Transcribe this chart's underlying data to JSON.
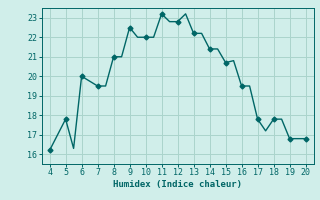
{
  "x": [
    4,
    5,
    5.5,
    6,
    7,
    7.5,
    8,
    8.5,
    9,
    9.5,
    10,
    10.5,
    11,
    11.5,
    12,
    12.5,
    13,
    13.5,
    14,
    14.5,
    15,
    15.5,
    16,
    16.5,
    17,
    17.5,
    18,
    18.5,
    19,
    19.5,
    20
  ],
  "y": [
    16.2,
    17.8,
    16.3,
    20.0,
    19.5,
    19.5,
    21.0,
    21.0,
    22.5,
    22.0,
    22.0,
    22.0,
    23.2,
    22.8,
    22.8,
    23.2,
    22.2,
    22.2,
    21.4,
    21.4,
    20.7,
    20.8,
    19.5,
    19.5,
    17.8,
    17.2,
    17.8,
    17.8,
    16.8,
    16.8,
    16.8
  ],
  "markers_x": [
    4,
    5,
    6,
    7,
    8,
    9,
    10,
    11,
    12,
    13,
    14,
    15,
    16,
    17,
    18,
    19,
    20
  ],
  "markers_y": [
    16.2,
    17.8,
    20.0,
    19.5,
    21.0,
    22.5,
    22.0,
    23.2,
    22.8,
    22.2,
    21.4,
    20.7,
    19.5,
    17.8,
    17.8,
    16.8,
    16.8
  ],
  "line_color": "#006666",
  "bg_color": "#d0eeea",
  "grid_color": "#aad4cc",
  "xlabel": "Humidex (Indice chaleur)",
  "xlim": [
    3.5,
    20.5
  ],
  "ylim": [
    15.5,
    23.5
  ],
  "xticks": [
    4,
    5,
    6,
    7,
    8,
    9,
    10,
    11,
    12,
    13,
    14,
    15,
    16,
    17,
    18,
    19,
    20
  ],
  "yticks": [
    16,
    17,
    18,
    19,
    20,
    21,
    22,
    23
  ]
}
